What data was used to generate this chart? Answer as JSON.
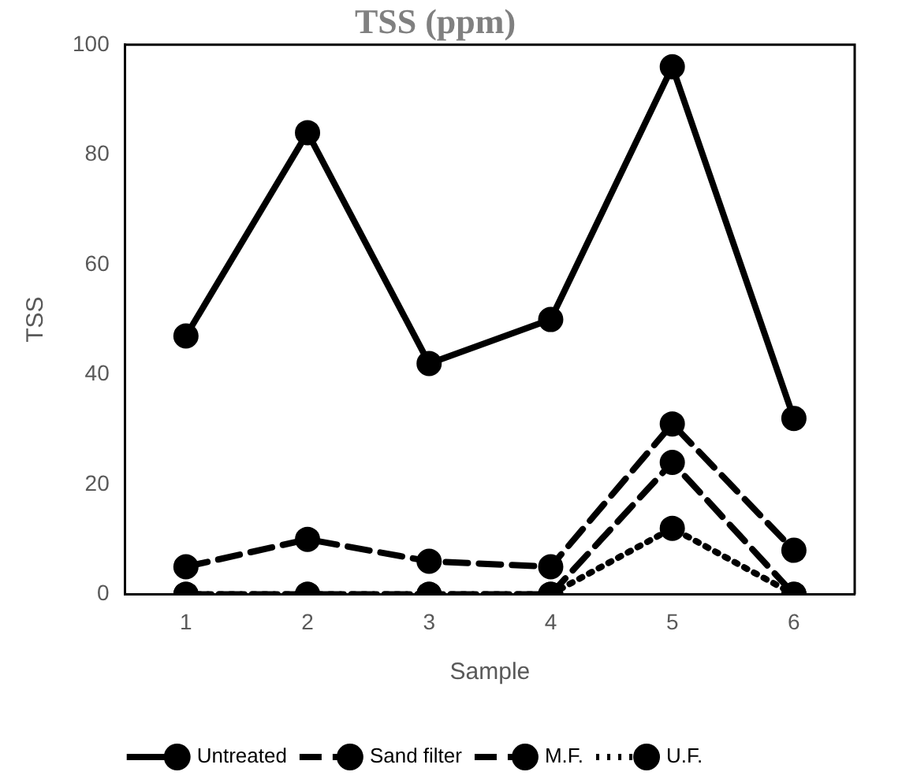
{
  "chart_data": {
    "type": "line",
    "title": "TSS (ppm)",
    "xlabel": "Sample",
    "ylabel": "TSS",
    "categories": [
      "1",
      "2",
      "3",
      "4",
      "5",
      "6"
    ],
    "series": [
      {
        "name": "Untreated",
        "color": "#000000",
        "line_style": "solid",
        "values": [
          47,
          84,
          42,
          50,
          96,
          32
        ]
      },
      {
        "name": "Sand filter",
        "color": "#000000",
        "line_style": "dashed",
        "values": [
          5,
          10,
          6,
          5,
          31,
          8
        ]
      },
      {
        "name": "M.F.",
        "color": "#000000",
        "line_style": "dashed",
        "values": [
          0,
          0,
          0,
          0,
          24,
          0
        ]
      },
      {
        "name": "U.F.",
        "color": "#000000",
        "line_style": "dotted",
        "values": [
          0,
          0,
          0,
          0,
          12,
          0
        ]
      }
    ],
    "ylim": [
      0,
      100
    ],
    "yticks": [
      0,
      20,
      40,
      60,
      80,
      100
    ],
    "grid": false,
    "legend": "bottom",
    "marker": "circle"
  }
}
